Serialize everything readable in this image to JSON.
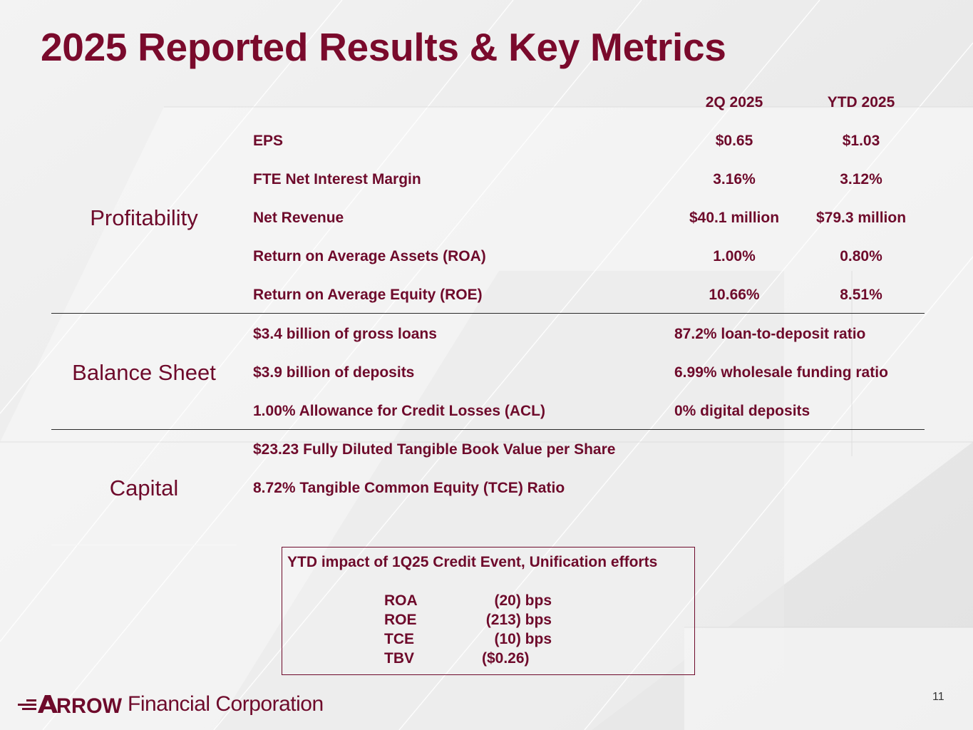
{
  "title": "2025 Reported Results & Key Metrics",
  "columns": {
    "q": "2Q 2025",
    "ytd": "YTD 2025"
  },
  "profitability": {
    "label": "Profitability",
    "rows": [
      {
        "metric": "EPS",
        "q": "$0.65",
        "ytd": "$1.03"
      },
      {
        "metric": "FTE Net Interest Margin",
        "q": "3.16%",
        "ytd": "3.12%"
      },
      {
        "metric": "Net Revenue",
        "q": "$40.1 million",
        "ytd": "$79.3 million"
      },
      {
        "metric": "Return on Average Assets (ROA)",
        "q": "1.00%",
        "ytd": "0.80%"
      },
      {
        "metric": "Return on Average Equity (ROE)",
        "q": "10.66%",
        "ytd": "8.51%"
      }
    ]
  },
  "balance_sheet": {
    "label": "Balance Sheet",
    "rows": [
      {
        "left": "$3.4 billion of gross loans",
        "right": "87.2% loan-to-deposit ratio"
      },
      {
        "left": "$3.9 billion of deposits",
        "right": "6.99% wholesale funding ratio"
      },
      {
        "left": "1.00% Allowance for Credit Losses (ACL)",
        "right": "0% digital deposits"
      }
    ]
  },
  "capital": {
    "label": "Capital",
    "rows": [
      "$23.23 Fully Diluted Tangible Book Value per Share",
      "8.72% Tangible Common Equity (TCE) Ratio"
    ]
  },
  "impact": {
    "title": "YTD impact of 1Q25 Credit Event, Unification efforts",
    "rows": [
      {
        "label": "ROA",
        "value": "(20) bps"
      },
      {
        "label": "ROE",
        "value": "(213) bps"
      },
      {
        "label": "TCE",
        "value": "(10) bps"
      },
      {
        "label": "TBV",
        "value": "($0.26)"
      }
    ]
  },
  "footer": {
    "logo_word": "ARROW",
    "logo_text": "Financial Corporation",
    "page_number": "11"
  },
  "colors": {
    "brand": "#6e0a2b",
    "title": "#7a0a2c"
  }
}
